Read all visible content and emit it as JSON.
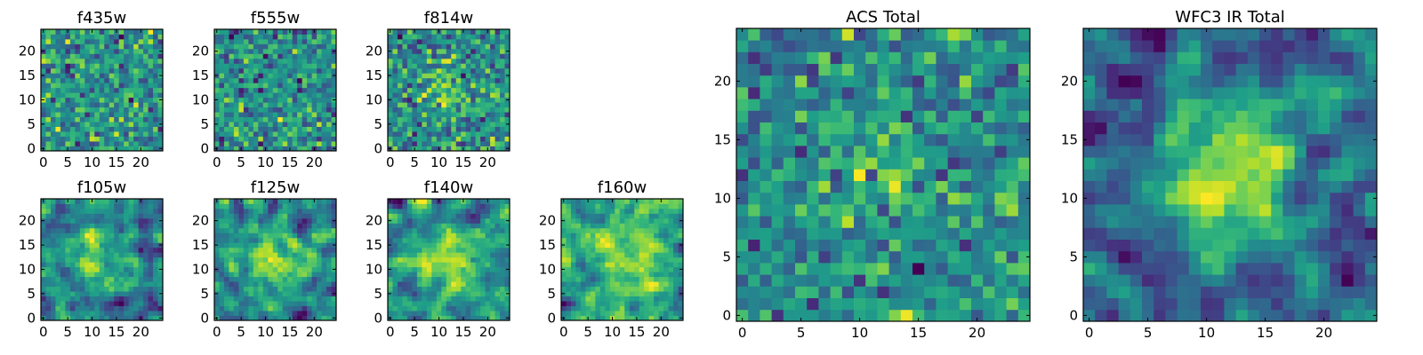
{
  "chart_data": [
    {
      "type": "heatmap",
      "title": "f435w",
      "xticks": [
        0,
        5,
        10,
        15,
        20
      ],
      "yticks": [
        0,
        5,
        10,
        15,
        20
      ],
      "xlim": [
        -0.5,
        24.5
      ],
      "ylim": [
        -0.5,
        24.5
      ],
      "colormap": "viridis",
      "pattern": "noise",
      "seed": 11
    },
    {
      "type": "heatmap",
      "title": "f555w",
      "xticks": [
        0,
        5,
        10,
        15,
        20
      ],
      "yticks": [
        0,
        5,
        10,
        15,
        20
      ],
      "xlim": [
        -0.5,
        24.5
      ],
      "ylim": [
        -0.5,
        24.5
      ],
      "colormap": "viridis",
      "pattern": "noise",
      "seed": 23
    },
    {
      "type": "heatmap",
      "title": "f814w",
      "xticks": [
        0,
        5,
        10,
        15,
        20
      ],
      "yticks": [
        0,
        5,
        10,
        15,
        20
      ],
      "xlim": [
        -0.5,
        24.5
      ],
      "ylim": [
        -0.5,
        24.5
      ],
      "colormap": "viridis",
      "pattern": "noise-faint-source",
      "seed": 37
    },
    {
      "type": "heatmap",
      "title": "f105w",
      "xticks": [
        0,
        5,
        10,
        15,
        20
      ],
      "yticks": [
        0,
        5,
        10,
        15,
        20
      ],
      "xlim": [
        -0.5,
        24.5
      ],
      "ylim": [
        -0.5,
        24.5
      ],
      "colormap": "viridis",
      "pattern": "smooth-source",
      "seed": 41
    },
    {
      "type": "heatmap",
      "title": "f125w",
      "xticks": [
        0,
        5,
        10,
        15,
        20
      ],
      "yticks": [
        0,
        5,
        10,
        15,
        20
      ],
      "xlim": [
        -0.5,
        24.5
      ],
      "ylim": [
        -0.5,
        24.5
      ],
      "colormap": "viridis",
      "pattern": "smooth-source",
      "seed": 53
    },
    {
      "type": "heatmap",
      "title": "f140w",
      "xticks": [
        0,
        5,
        10,
        15,
        20
      ],
      "yticks": [
        0,
        5,
        10,
        15,
        20
      ],
      "xlim": [
        -0.5,
        24.5
      ],
      "ylim": [
        -0.5,
        24.5
      ],
      "colormap": "viridis",
      "pattern": "smooth-source",
      "seed": 67
    },
    {
      "type": "heatmap",
      "title": "f160w",
      "xticks": [
        0,
        5,
        10,
        15,
        20
      ],
      "yticks": [
        0,
        5,
        10,
        15,
        20
      ],
      "xlim": [
        -0.5,
        24.5
      ],
      "ylim": [
        -0.5,
        24.5
      ],
      "colormap": "viridis",
      "pattern": "smooth-source",
      "seed": 79
    },
    {
      "type": "heatmap",
      "title": "ACS Total",
      "xticks": [
        0,
        5,
        10,
        15,
        20
      ],
      "yticks": [
        0,
        5,
        10,
        15,
        20
      ],
      "xlim": [
        -0.5,
        24.5
      ],
      "ylim": [
        -0.5,
        24.5
      ],
      "colormap": "viridis",
      "pattern": "noise-faint-source",
      "seed": 97
    },
    {
      "type": "heatmap",
      "title": "WFC3 IR Total",
      "xticks": [
        0,
        5,
        10,
        15,
        20
      ],
      "yticks": [
        0,
        5,
        10,
        15,
        20
      ],
      "xlim": [
        -0.5,
        24.5
      ],
      "ylim": [
        -0.5,
        24.5
      ],
      "colormap": "viridis",
      "pattern": "strong-source",
      "seed": 131
    }
  ]
}
